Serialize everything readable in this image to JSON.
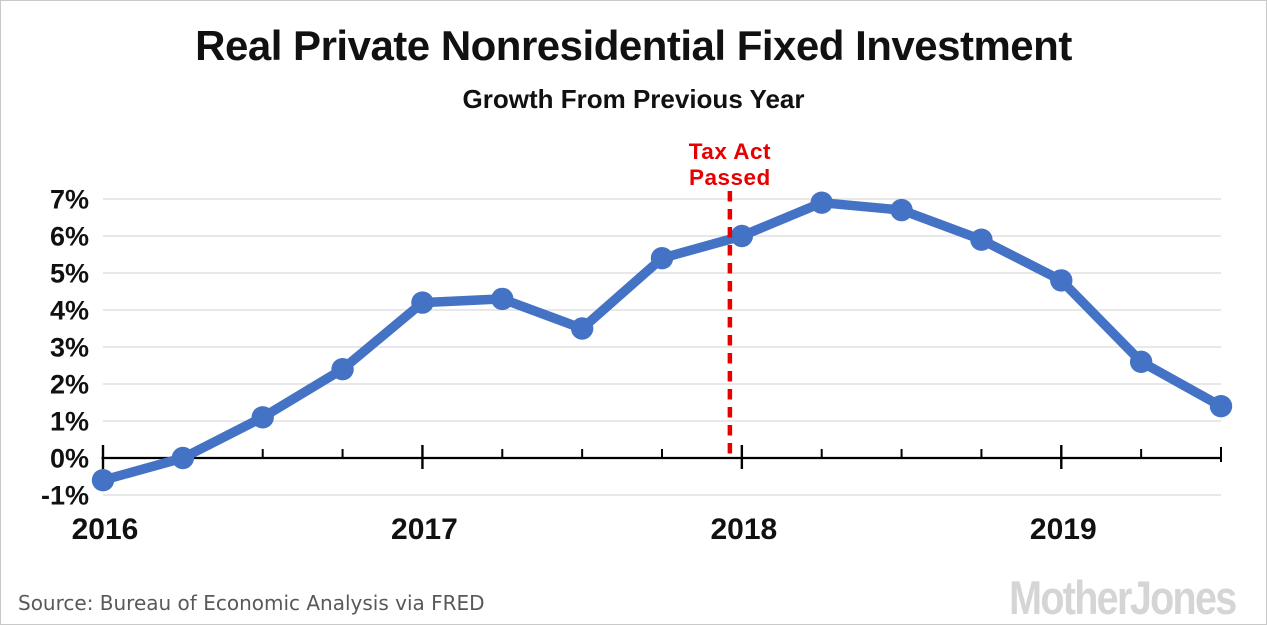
{
  "page": {
    "source": "Source: Bureau of Economic Analysis via FRED",
    "brand": "Mother Jones"
  },
  "chart_data": {
    "type": "line",
    "title": "Real Private Nonresidential Fixed Investment",
    "subtitle": "Growth From Previous Year",
    "x": [
      "2016 Q1",
      "2016 Q2",
      "2016 Q3",
      "2016 Q4",
      "2017 Q1",
      "2017 Q2",
      "2017 Q3",
      "2017 Q4",
      "2018 Q1",
      "2018 Q2",
      "2018 Q3",
      "2018 Q4",
      "2019 Q1",
      "2019 Q2",
      "2019 Q3"
    ],
    "values": [
      -0.6,
      0.0,
      1.1,
      2.4,
      4.2,
      4.3,
      3.5,
      5.4,
      6.0,
      6.9,
      6.7,
      5.9,
      4.8,
      2.6,
      1.4
    ],
    "units": "percent growth from previous year",
    "ylim": [
      -1,
      7
    ],
    "ytick_values": [
      7,
      6,
      5,
      4,
      3,
      2,
      1,
      0,
      -1
    ],
    "ytick_labels": [
      "7%",
      "6%",
      "5%",
      "4%",
      "3%",
      "2%",
      "1%",
      "0%",
      "-1%"
    ],
    "year_tick_indices": [
      0,
      4,
      8,
      12
    ],
    "year_labels": [
      "2016",
      "2017",
      "2018",
      "2019"
    ],
    "grid": true,
    "legend": false,
    "annotation": {
      "lines": [
        "Tax Act",
        "Passed"
      ],
      "x_index": 7.85,
      "style": "dashed-vertical-line",
      "color": "#e60000"
    },
    "colors": {
      "line": "#4472c4",
      "grid": "#d9d9d9",
      "axis": "#000000",
      "annotation": "#e60000",
      "labels": "#111111"
    }
  }
}
